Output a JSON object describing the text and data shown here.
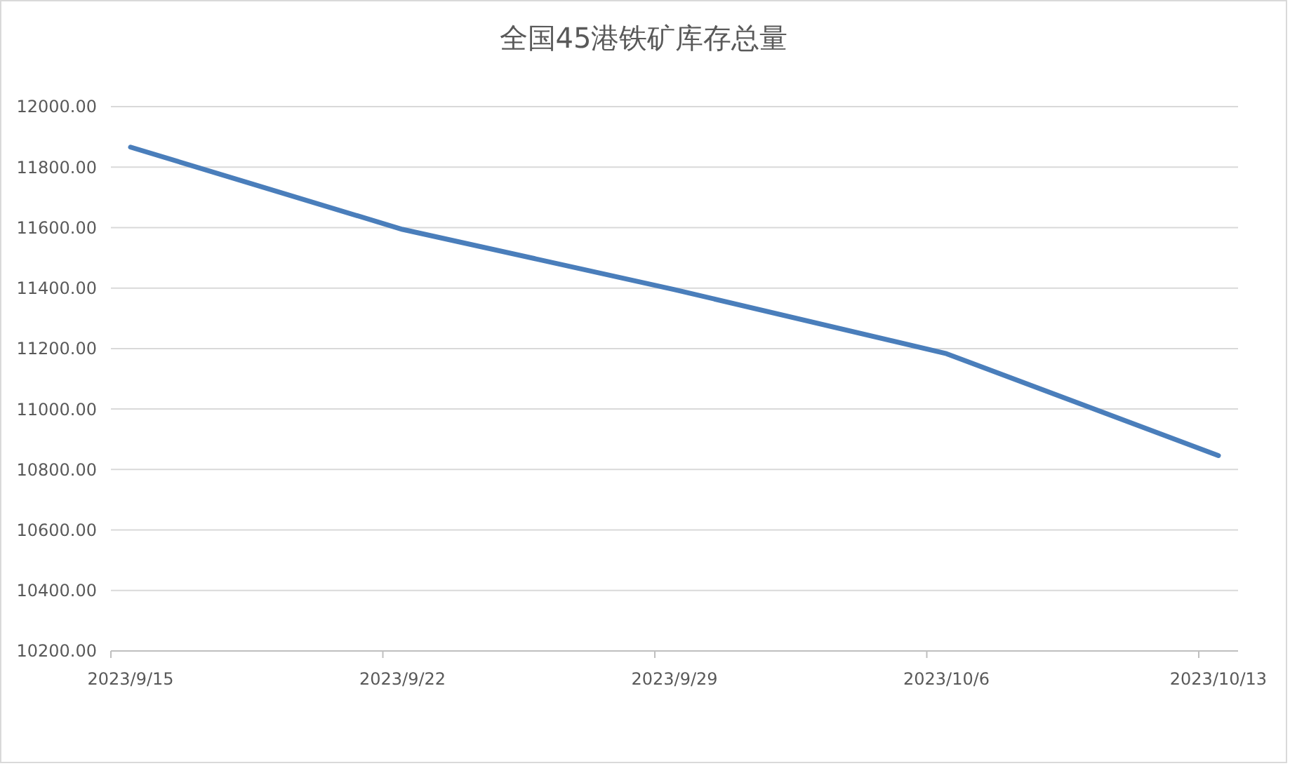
{
  "chart_data": {
    "type": "line",
    "title": "全国45港铁矿库存总量",
    "categories": [
      "2023/9/15",
      "2023/9/22",
      "2023/9/29",
      "2023/10/6",
      "2023/10/13"
    ],
    "series": [
      {
        "color": "#4a7ebb",
        "values": [
          11866,
          11594,
          11395,
          11183,
          10846
        ]
      }
    ],
    "ylim": [
      10200,
      12000
    ],
    "yticks": [
      {
        "value": 10200,
        "label": "10200.00"
      },
      {
        "value": 10400,
        "label": "10400.00"
      },
      {
        "value": 10600,
        "label": "10600.00"
      },
      {
        "value": 10800,
        "label": "10800.00"
      },
      {
        "value": 11000,
        "label": "11000.00"
      },
      {
        "value": 11200,
        "label": "11200.00"
      },
      {
        "value": 11400,
        "label": "11400.00"
      },
      {
        "value": 11600,
        "label": "11600.00"
      },
      {
        "value": 11800,
        "label": "11800.00"
      },
      {
        "value": 12000,
        "label": "12000.00"
      }
    ],
    "grid": "y",
    "marker": "none",
    "line_style": "solid"
  }
}
